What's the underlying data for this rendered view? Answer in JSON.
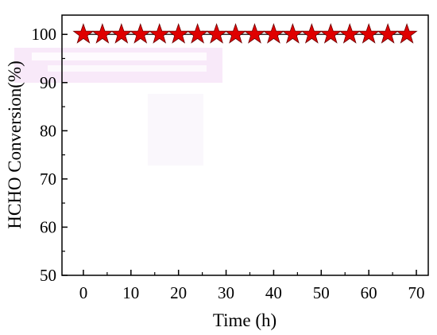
{
  "chart_data": {
    "type": "line",
    "title": "",
    "xlabel": "Time (h)",
    "ylabel": "HCHO Conversion(%)",
    "xlim": [
      -4.5,
      72.5
    ],
    "ylim": [
      50,
      104
    ],
    "xticks": [
      0,
      10,
      20,
      30,
      40,
      50,
      60,
      70
    ],
    "yticks": [
      50,
      60,
      70,
      80,
      90,
      100
    ],
    "grid": false,
    "legend": "none",
    "series": [
      {
        "marker": "star",
        "color": "#e00000",
        "x": [
          0,
          4,
          8,
          12,
          16,
          20,
          24,
          28,
          32,
          36,
          40,
          44,
          48,
          52,
          56,
          60,
          64,
          68
        ],
        "y": [
          100,
          100,
          100,
          100,
          100,
          100,
          100,
          100,
          100,
          100,
          100,
          100,
          100,
          100,
          100,
          100,
          100,
          100
        ]
      }
    ]
  }
}
